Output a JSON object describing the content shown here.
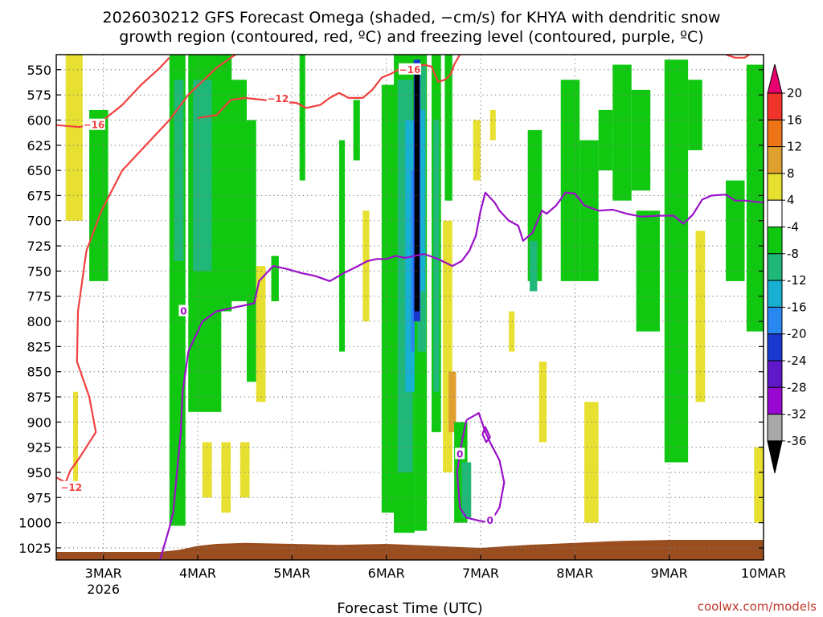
{
  "title": {
    "line1": "2026030212 GFS Forecast Omega (shaded, −cm/s) for KHYA with dendritic snow",
    "line2": "growth region (contoured, red, ºC) and freezing level (contoured, purple, ºC)"
  },
  "credit": "coolwx.com/models",
  "chart_data": {
    "type": "heatmap",
    "title": "2026030212 GFS Forecast Omega (shaded, −cm/s) for KHYA with dendritic snow growth region (contoured, red, ºC) and freezing level (contoured, purple, ºC)",
    "xlabel": "Forecast Time (UTC)",
    "ylabel": "",
    "x_range": [
      2.5,
      10.0
    ],
    "y_range": [
      1037,
      535
    ],
    "x_ticks": [
      {
        "value": 3,
        "label": "3MAR",
        "sublabel": "2026"
      },
      {
        "value": 4,
        "label": "4MAR",
        "sublabel": ""
      },
      {
        "value": 5,
        "label": "5MAR",
        "sublabel": ""
      },
      {
        "value": 6,
        "label": "6MAR",
        "sublabel": ""
      },
      {
        "value": 7,
        "label": "7MAR",
        "sublabel": ""
      },
      {
        "value": 8,
        "label": "8MAR",
        "sublabel": ""
      },
      {
        "value": 9,
        "label": "9MAR",
        "sublabel": ""
      },
      {
        "value": 10,
        "label": "10MAR",
        "sublabel": ""
      }
    ],
    "y_ticks": [
      550,
      575,
      600,
      625,
      650,
      675,
      700,
      725,
      750,
      775,
      800,
      825,
      850,
      875,
      900,
      925,
      950,
      975,
      1000,
      1025
    ],
    "colorbar": {
      "levels": [
        "20",
        "16",
        "12",
        "8",
        "4",
        "-4",
        "-8",
        "-12",
        "-16",
        "-20",
        "-24",
        "-28",
        "-32",
        "-36"
      ],
      "colors": [
        "#e8006e",
        "#f0342a",
        "#ee7418",
        "#e0a030",
        "#e8e030",
        "#ffffff",
        "#10c810",
        "#20b878",
        "#18b0d0",
        "#2888f0",
        "#1838d0",
        "#6018c8",
        "#9808d0",
        "#a8a8a8",
        "#000000"
      ]
    },
    "omega_regions": [
      {
        "x0": 2.6,
        "x1": 2.78,
        "p0": 535,
        "p1": 700,
        "class": "pos4"
      },
      {
        "x0": 2.68,
        "x1": 2.73,
        "p0": 870,
        "p1": 960,
        "class": "pos4"
      },
      {
        "x0": 2.85,
        "x1": 3.05,
        "p0": 590,
        "p1": 760,
        "class": "neg8"
      },
      {
        "x0": 3.7,
        "x1": 3.87,
        "p0": 535,
        "p1": 1003,
        "class": "neg8"
      },
      {
        "x0": 3.75,
        "x1": 3.85,
        "p0": 560,
        "p1": 740,
        "class": "neg12"
      },
      {
        "x0": 3.9,
        "x1": 4.25,
        "p0": 535,
        "p1": 890,
        "class": "neg8"
      },
      {
        "x0": 3.95,
        "x1": 4.15,
        "p0": 560,
        "p1": 750,
        "class": "neg12"
      },
      {
        "x0": 4.22,
        "x1": 4.36,
        "p0": 535,
        "p1": 790,
        "class": "neg8"
      },
      {
        "x0": 4.35,
        "x1": 4.52,
        "p0": 560,
        "p1": 780,
        "class": "neg8"
      },
      {
        "x0": 4.52,
        "x1": 4.62,
        "p0": 600,
        "p1": 860,
        "class": "neg8"
      },
      {
        "x0": 4.62,
        "x1": 4.72,
        "p0": 745,
        "p1": 880,
        "class": "pos4"
      },
      {
        "x0": 4.05,
        "x1": 4.15,
        "p0": 920,
        "p1": 975,
        "class": "pos4"
      },
      {
        "x0": 4.25,
        "x1": 4.35,
        "p0": 920,
        "p1": 990,
        "class": "pos4"
      },
      {
        "x0": 4.45,
        "x1": 4.55,
        "p0": 920,
        "p1": 975,
        "class": "pos4"
      },
      {
        "x0": 4.78,
        "x1": 4.86,
        "p0": 735,
        "p1": 780,
        "class": "neg8"
      },
      {
        "x0": 5.08,
        "x1": 5.14,
        "p0": 535,
        "p1": 660,
        "class": "neg8"
      },
      {
        "x0": 5.5,
        "x1": 5.56,
        "p0": 620,
        "p1": 830,
        "class": "neg8"
      },
      {
        "x0": 5.65,
        "x1": 5.72,
        "p0": 580,
        "p1": 640,
        "class": "neg8"
      },
      {
        "x0": 5.75,
        "x1": 5.82,
        "p0": 690,
        "p1": 800,
        "class": "pos4"
      },
      {
        "x0": 5.95,
        "x1": 6.1,
        "p0": 565,
        "p1": 990,
        "class": "neg8"
      },
      {
        "x0": 6.08,
        "x1": 6.3,
        "p0": 535,
        "p1": 1010,
        "class": "neg8"
      },
      {
        "x0": 6.12,
        "x1": 6.28,
        "p0": 560,
        "p1": 950,
        "class": "neg12"
      },
      {
        "x0": 6.2,
        "x1": 6.3,
        "p0": 600,
        "p1": 870,
        "class": "neg16"
      },
      {
        "x0": 6.26,
        "x1": 6.31,
        "p0": 650,
        "p1": 830,
        "class": "neg20"
      },
      {
        "x0": 6.3,
        "x1": 6.43,
        "p0": 535,
        "p1": 1008,
        "class": "neg8"
      },
      {
        "x0": 6.33,
        "x1": 6.42,
        "p0": 545,
        "p1": 830,
        "class": "neg12"
      },
      {
        "x0": 6.36,
        "x1": 6.41,
        "p0": 590,
        "p1": 770,
        "class": "neg16"
      },
      {
        "x0": 6.29,
        "x1": 6.36,
        "p0": 540,
        "p1": 800,
        "class": "neg24"
      },
      {
        "x0": 6.3,
        "x1": 6.35,
        "p0": 550,
        "p1": 790,
        "class": "neg36"
      },
      {
        "x0": 6.48,
        "x1": 6.58,
        "p0": 535,
        "p1": 910,
        "class": "neg8"
      },
      {
        "x0": 6.5,
        "x1": 6.56,
        "p0": 600,
        "p1": 870,
        "class": "neg12"
      },
      {
        "x0": 6.62,
        "x1": 6.7,
        "p0": 535,
        "p1": 680,
        "class": "neg8"
      },
      {
        "x0": 6.6,
        "x1": 6.7,
        "p0": 700,
        "p1": 950,
        "class": "pos4"
      },
      {
        "x0": 6.66,
        "x1": 6.74,
        "p0": 850,
        "p1": 910,
        "class": "pos8"
      },
      {
        "x0": 6.72,
        "x1": 6.86,
        "p0": 900,
        "p1": 1000,
        "class": "neg8"
      },
      {
        "x0": 6.8,
        "x1": 6.9,
        "p0": 940,
        "p1": 995,
        "class": "neg12"
      },
      {
        "x0": 6.92,
        "x1": 7.0,
        "p0": 600,
        "p1": 660,
        "class": "pos4"
      },
      {
        "x0": 7.1,
        "x1": 7.16,
        "p0": 590,
        "p1": 620,
        "class": "pos4"
      },
      {
        "x0": 7.3,
        "x1": 7.36,
        "p0": 790,
        "p1": 830,
        "class": "pos4"
      },
      {
        "x0": 7.5,
        "x1": 7.65,
        "p0": 610,
        "p1": 760,
        "class": "neg8"
      },
      {
        "x0": 7.52,
        "x1": 7.6,
        "p0": 720,
        "p1": 770,
        "class": "neg12"
      },
      {
        "x0": 7.62,
        "x1": 7.7,
        "p0": 840,
        "p1": 920,
        "class": "pos4"
      },
      {
        "x0": 7.85,
        "x1": 8.05,
        "p0": 560,
        "p1": 760,
        "class": "neg8"
      },
      {
        "x0": 8.05,
        "x1": 8.25,
        "p0": 620,
        "p1": 760,
        "class": "neg8"
      },
      {
        "x0": 8.1,
        "x1": 8.25,
        "p0": 880,
        "p1": 1000,
        "class": "pos4"
      },
      {
        "x0": 8.25,
        "x1": 8.4,
        "p0": 590,
        "p1": 650,
        "class": "neg8"
      },
      {
        "x0": 8.4,
        "x1": 8.6,
        "p0": 545,
        "p1": 680,
        "class": "neg8"
      },
      {
        "x0": 8.6,
        "x1": 8.8,
        "p0": 570,
        "p1": 670,
        "class": "neg8"
      },
      {
        "x0": 8.65,
        "x1": 8.9,
        "p0": 690,
        "p1": 810,
        "class": "neg8"
      },
      {
        "x0": 8.95,
        "x1": 9.2,
        "p0": 540,
        "p1": 940,
        "class": "neg8"
      },
      {
        "x0": 9.2,
        "x1": 9.35,
        "p0": 560,
        "p1": 630,
        "class": "neg8"
      },
      {
        "x0": 9.28,
        "x1": 9.38,
        "p0": 710,
        "p1": 880,
        "class": "pos4"
      },
      {
        "x0": 9.6,
        "x1": 9.8,
        "p0": 660,
        "p1": 760,
        "class": "neg8"
      },
      {
        "x0": 9.82,
        "x1": 10.0,
        "p0": 545,
        "p1": 810,
        "class": "neg8"
      },
      {
        "x0": 9.9,
        "x1": 10.0,
        "p0": 925,
        "p1": 1000,
        "class": "pos4"
      }
    ],
    "surface_terrain": [
      {
        "x": 2.5,
        "p": 1029
      },
      {
        "x": 3.6,
        "p": 1029
      },
      {
        "x": 3.8,
        "p": 1027
      },
      {
        "x": 4.0,
        "p": 1023
      },
      {
        "x": 4.2,
        "p": 1021
      },
      {
        "x": 4.5,
        "p": 1020
      },
      {
        "x": 5.0,
        "p": 1021
      },
      {
        "x": 5.5,
        "p": 1022
      },
      {
        "x": 6.0,
        "p": 1021
      },
      {
        "x": 6.5,
        "p": 1023
      },
      {
        "x": 7.0,
        "p": 1025
      },
      {
        "x": 7.5,
        "p": 1022
      },
      {
        "x": 8.0,
        "p": 1020
      },
      {
        "x": 8.5,
        "p": 1018
      },
      {
        "x": 9.0,
        "p": 1017
      },
      {
        "x": 10.0,
        "p": 1017
      }
    ],
    "dgz_contours": [
      {
        "name": "-12 (lower, left)",
        "label": "−12",
        "label_x": 2.66,
        "label_p": 965,
        "points": [
          [
            2.5,
            955
          ],
          [
            2.6,
            960
          ],
          [
            2.65,
            948
          ],
          [
            2.75,
            935
          ],
          [
            2.92,
            910
          ],
          [
            2.85,
            875
          ],
          [
            2.72,
            840
          ],
          [
            2.73,
            790
          ],
          [
            2.82,
            730
          ],
          [
            2.98,
            690
          ],
          [
            3.2,
            650
          ],
          [
            3.5,
            620
          ],
          [
            3.7,
            600
          ],
          [
            3.9,
            575
          ],
          [
            4.2,
            548
          ],
          [
            4.4,
            535
          ]
        ]
      },
      {
        "name": "-16 (left)",
        "label": "−16",
        "label_x": 2.9,
        "label_p": 605,
        "points": [
          [
            2.5,
            605
          ],
          [
            2.75,
            607
          ],
          [
            3.0,
            600
          ],
          [
            3.2,
            585
          ],
          [
            3.4,
            565
          ],
          [
            3.6,
            548
          ],
          [
            3.7,
            538
          ]
        ]
      },
      {
        "name": "-12 (upper)",
        "label": "−12",
        "label_x": 4.85,
        "label_p": 579,
        "points": [
          [
            4.0,
            598
          ],
          [
            4.2,
            595
          ],
          [
            4.35,
            580
          ],
          [
            4.5,
            578
          ],
          [
            4.7,
            580
          ],
          [
            4.9,
            582
          ],
          [
            5.05,
            583
          ],
          [
            5.15,
            588
          ],
          [
            5.3,
            585
          ],
          [
            5.4,
            578
          ],
          [
            5.5,
            573
          ],
          [
            5.6,
            578
          ],
          [
            5.75,
            578
          ],
          [
            5.85,
            570
          ],
          [
            5.95,
            558
          ],
          [
            6.05,
            554
          ],
          [
            6.15,
            549
          ]
        ]
      },
      {
        "name": "-16 (upper)",
        "label": "−16",
        "label_x": 6.25,
        "label_p": 550,
        "points": [
          [
            6.2,
            545
          ],
          [
            6.3,
            548
          ],
          [
            6.4,
            545
          ],
          [
            6.48,
            547
          ],
          [
            6.55,
            562
          ],
          [
            6.62,
            560
          ],
          [
            6.68,
            555
          ],
          [
            6.72,
            545
          ],
          [
            6.78,
            535
          ]
        ]
      },
      {
        "name": "-12 (top right)",
        "label": "",
        "label_x": 0,
        "label_p": 0,
        "points": [
          [
            9.6,
            535
          ],
          [
            9.7,
            538
          ],
          [
            9.8,
            538
          ],
          [
            9.85,
            535
          ]
        ]
      }
    ],
    "freezing_contours": [
      {
        "name": "0C main",
        "label": "0",
        "label_x": 3.85,
        "label_p": 790,
        "points": [
          [
            3.6,
            1037
          ],
          [
            3.7,
            1005
          ],
          [
            3.74,
            990
          ],
          [
            3.82,
            910
          ],
          [
            3.84,
            870
          ],
          [
            3.9,
            830
          ],
          [
            4.05,
            800
          ],
          [
            4.2,
            790
          ],
          [
            4.45,
            785
          ],
          [
            4.6,
            782
          ],
          [
            4.65,
            760
          ],
          [
            4.8,
            745
          ],
          [
            4.95,
            748
          ],
          [
            5.1,
            752
          ],
          [
            5.25,
            755
          ],
          [
            5.4,
            760
          ],
          [
            5.55,
            752
          ],
          [
            5.7,
            745
          ],
          [
            5.8,
            740
          ],
          [
            5.9,
            738
          ],
          [
            6.0,
            738
          ],
          [
            6.1,
            735
          ],
          [
            6.2,
            737
          ],
          [
            6.3,
            735
          ],
          [
            6.4,
            733
          ],
          [
            6.55,
            738
          ],
          [
            6.7,
            745
          ],
          [
            6.8,
            740
          ],
          [
            6.88,
            730
          ],
          [
            6.95,
            715
          ],
          [
            7.0,
            690
          ],
          [
            7.05,
            672
          ],
          [
            7.15,
            682
          ],
          [
            7.2,
            690
          ],
          [
            7.3,
            700
          ],
          [
            7.4,
            705
          ],
          [
            7.45,
            720
          ],
          [
            7.55,
            712
          ],
          [
            7.65,
            690
          ],
          [
            7.7,
            693
          ],
          [
            7.8,
            685
          ],
          [
            7.9,
            672
          ],
          [
            8.0,
            673
          ],
          [
            8.1,
            685
          ],
          [
            8.25,
            690
          ],
          [
            8.4,
            689
          ],
          [
            8.55,
            693
          ],
          [
            8.7,
            696
          ],
          [
            8.9,
            695
          ],
          [
            9.05,
            695
          ],
          [
            9.15,
            703
          ],
          [
            9.25,
            694
          ],
          [
            9.35,
            679
          ],
          [
            9.45,
            675
          ],
          [
            9.6,
            674
          ],
          [
            9.7,
            680
          ],
          [
            9.8,
            680
          ],
          [
            10.0,
            682
          ]
        ]
      },
      {
        "name": "0C lower loop",
        "label": "0",
        "label_x": 7.1,
        "label_p": 998,
        "points": [
          [
            6.85,
            898
          ],
          [
            6.98,
            891
          ],
          [
            7.05,
            910
          ],
          [
            7.1,
            920
          ],
          [
            7.2,
            938
          ],
          [
            7.25,
            960
          ],
          [
            7.2,
            985
          ],
          [
            7.1,
            1000
          ],
          [
            6.98,
            998
          ],
          [
            6.85,
            995
          ],
          [
            6.78,
            985
          ],
          [
            6.75,
            950
          ],
          [
            6.8,
            920
          ],
          [
            6.85,
            898
          ]
        ]
      },
      {
        "name": "0C inner ring",
        "label": "0",
        "label_x": 6.78,
        "label_p": 932,
        "points": [
          [
            7.02,
            912
          ],
          [
            7.05,
            905
          ],
          [
            7.1,
            915
          ],
          [
            7.06,
            920
          ],
          [
            7.02,
            912
          ]
        ]
      }
    ]
  }
}
